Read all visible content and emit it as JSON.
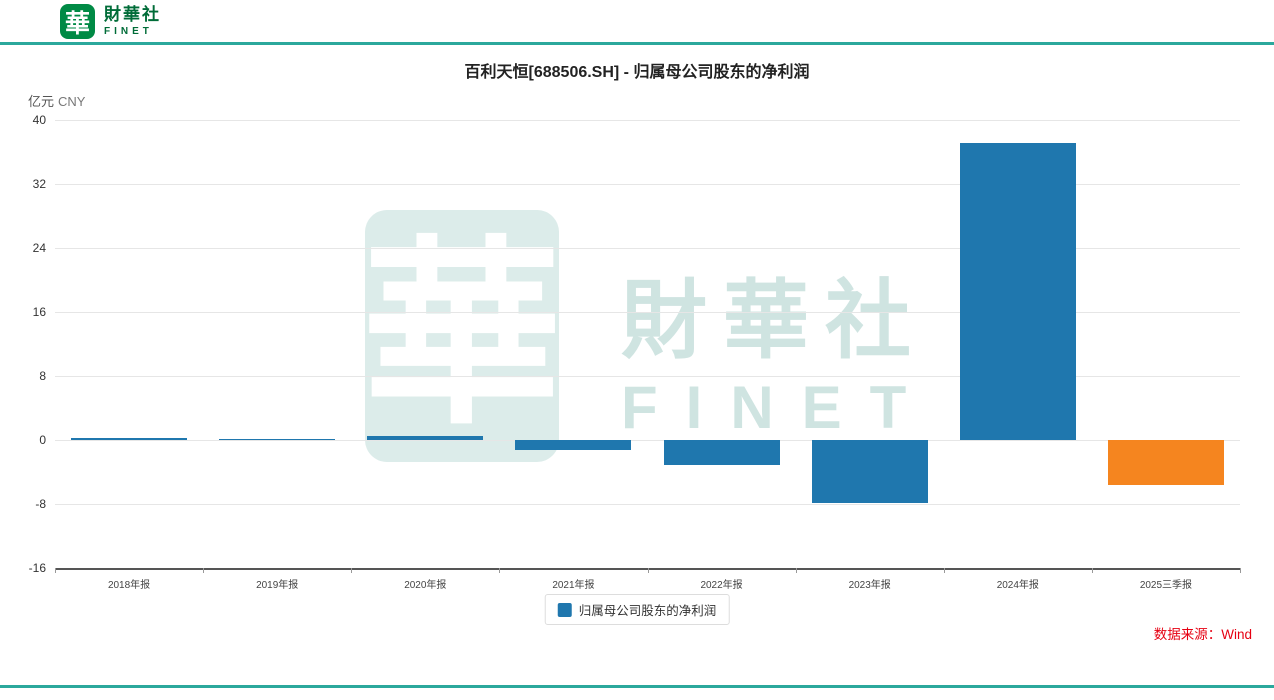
{
  "header": {
    "logo_glyph": "華",
    "brand_name": "財華社",
    "brand_sub": "FINET"
  },
  "chart_data": {
    "type": "bar",
    "title": "百利天恒[688506.SH] - 归属母公司股东的净利润",
    "unit_label": "亿元",
    "currency_label": "CNY",
    "categories": [
      "2018年报",
      "2019年报",
      "2020年报",
      "2021年报",
      "2022年报",
      "2023年报",
      "2024年报",
      "2025三季报"
    ],
    "values": [
      0.3,
      0.1,
      0.5,
      -1.2,
      -3.1,
      -7.9,
      37.1,
      -5.6
    ],
    "ylim": [
      -16,
      40
    ],
    "yticks": [
      40,
      32,
      24,
      16,
      8,
      0,
      -8,
      -16
    ],
    "grid": true,
    "legend": [
      "归属母公司股东的净利润"
    ],
    "legend_position": "bottom",
    "series_color": "#1f77ae",
    "highlight_color": "#f5851f",
    "bar_colors": [
      "#1f77ae",
      "#1f77ae",
      "#1f77ae",
      "#1f77ae",
      "#1f77ae",
      "#1f77ae",
      "#1f77ae",
      "#f5851f"
    ]
  },
  "watermark": {
    "glyph": "華",
    "text": "財華社",
    "sub": "FINET"
  },
  "footer": {
    "source_label": "数据来源：Wind"
  },
  "theme": {
    "border_teal": "#2ba89c",
    "brand_green": "#008a45",
    "brand_text_green": "#006c38",
    "watermark_box": "#dcecea",
    "watermark_text": "#cfe4e1",
    "source_red": "#e60012",
    "grid_color": "#e6e6e6",
    "axis_color": "#555555"
  }
}
